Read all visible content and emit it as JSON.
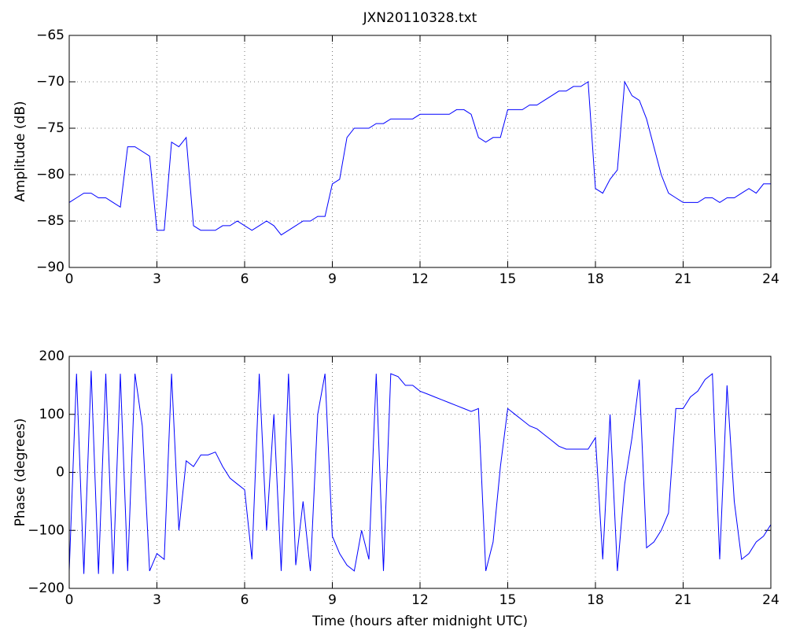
{
  "chart_data": [
    {
      "type": "line",
      "title": "JXN20110328.txt",
      "y_label": "Amplitude (dB)",
      "x": [
        0,
        0.25,
        0.5,
        0.75,
        1,
        1.25,
        1.5,
        1.75,
        2,
        2.25,
        2.5,
        2.75,
        3,
        3.25,
        3.5,
        3.75,
        4,
        4.25,
        4.5,
        4.75,
        5,
        5.25,
        5.5,
        5.75,
        6,
        6.25,
        6.5,
        6.75,
        7,
        7.25,
        7.5,
        7.75,
        8,
        8.25,
        8.5,
        8.75,
        9,
        9.25,
        9.5,
        9.75,
        10,
        10.25,
        10.5,
        10.75,
        11,
        11.25,
        11.5,
        11.75,
        12,
        12.25,
        12.5,
        12.75,
        13,
        13.25,
        13.5,
        13.75,
        14,
        14.25,
        14.5,
        14.75,
        15,
        15.25,
        15.5,
        15.75,
        16,
        16.25,
        16.5,
        16.75,
        17,
        17.25,
        17.5,
        17.75,
        18,
        18.25,
        18.5,
        18.75,
        19,
        19.25,
        19.5,
        19.75,
        20,
        20.25,
        20.5,
        20.75,
        21,
        21.25,
        21.5,
        21.75,
        22,
        22.25,
        22.5,
        22.75,
        23,
        23.25,
        23.5,
        23.75,
        24
      ],
      "series": [
        {
          "color": "#0000ff",
          "values": [
            -83,
            -82.5,
            -82,
            -82,
            -82.5,
            -82.5,
            -83,
            -83.5,
            -77,
            -77,
            -77.5,
            -78,
            -86,
            -86,
            -76.5,
            -77,
            -76,
            -85.5,
            -86,
            -86,
            -86,
            -85.5,
            -85.5,
            -85,
            -85.5,
            -86,
            -85.5,
            -85,
            -85.5,
            -86.5,
            -86,
            -85.5,
            -85,
            -85,
            -84.5,
            -84.5,
            -81,
            -80.5,
            -76,
            -75,
            -75,
            -75,
            -74.5,
            -74.5,
            -74,
            -74,
            -74,
            -74,
            -73.5,
            -73.5,
            -73.5,
            -73.5,
            -73.5,
            -73,
            -73,
            -73.5,
            -76,
            -76.5,
            -76,
            -76,
            -73,
            -73,
            -73,
            -72.5,
            -72.5,
            -72,
            -71.5,
            -71,
            -71,
            -70.5,
            -70.5,
            -70,
            -81.5,
            -82,
            -80.5,
            -79.5,
            -70,
            -71.5,
            -72,
            -74,
            -77,
            -80,
            -82,
            -82.5,
            -83,
            -83,
            -83,
            -82.5,
            -82.5,
            -83,
            -82.5,
            -82.5,
            -82,
            -81.5,
            -82,
            -81,
            -81
          ]
        }
      ],
      "xlim": [
        0,
        24
      ],
      "xticks": [
        0,
        3,
        6,
        9,
        12,
        15,
        18,
        21,
        24
      ],
      "ylim": [
        -90,
        -65
      ],
      "yticks": [
        {
          "value": -90,
          "label": "−90"
        },
        {
          "value": -85,
          "label": "−85"
        },
        {
          "value": -80,
          "label": "−80"
        },
        {
          "value": -75,
          "label": "−75"
        },
        {
          "value": -70,
          "label": "−70"
        },
        {
          "value": -65,
          "label": "−65"
        }
      ],
      "grid": true
    },
    {
      "type": "line",
      "x_label": "Time (hours after midnight UTC)",
      "y_label": "Phase (degrees)",
      "x": [
        0,
        0.25,
        0.5,
        0.75,
        1,
        1.25,
        1.5,
        1.75,
        2,
        2.25,
        2.5,
        2.75,
        3,
        3.25,
        3.5,
        3.75,
        4,
        4.25,
        4.5,
        4.75,
        5,
        5.25,
        5.5,
        5.75,
        6,
        6.25,
        6.5,
        6.75,
        7,
        7.25,
        7.5,
        7.75,
        8,
        8.25,
        8.5,
        8.75,
        9,
        9.25,
        9.5,
        9.75,
        10,
        10.25,
        10.5,
        10.75,
        11,
        11.25,
        11.5,
        11.75,
        12,
        12.25,
        12.5,
        12.75,
        13,
        13.25,
        13.5,
        13.75,
        14,
        14.25,
        14.5,
        14.75,
        15,
        15.25,
        15.5,
        15.75,
        16,
        16.25,
        16.5,
        16.75,
        17,
        17.25,
        17.5,
        17.75,
        18,
        18.25,
        18.5,
        18.75,
        19,
        19.25,
        19.5,
        19.75,
        20,
        20.25,
        20.5,
        20.75,
        21,
        21.25,
        21.5,
        21.75,
        22,
        22.25,
        22.5,
        22.75,
        23,
        23.25,
        23.5,
        23.75,
        24
      ],
      "series": [
        {
          "color": "#0000ff",
          "values": [
            -170,
            170,
            -175,
            175,
            -175,
            170,
            -175,
            170,
            -170,
            170,
            80,
            -170,
            -140,
            -150,
            170,
            -100,
            20,
            10,
            30,
            30,
            35,
            10,
            -10,
            -20,
            -30,
            -150,
            170,
            -100,
            100,
            -170,
            170,
            -160,
            -50,
            -170,
            100,
            170,
            -110,
            -140,
            -160,
            -170,
            -100,
            -150,
            170,
            -170,
            170,
            165,
            150,
            150,
            140,
            135,
            130,
            125,
            120,
            115,
            110,
            105,
            110,
            -170,
            -120,
            10,
            110,
            100,
            90,
            80,
            75,
            65,
            55,
            45,
            40,
            40,
            40,
            40,
            60,
            -150,
            100,
            -170,
            -20,
            60,
            160,
            -130,
            -120,
            -100,
            -70,
            110,
            110,
            130,
            140,
            160,
            170,
            -150,
            150,
            -50,
            -150,
            -140,
            -120,
            -110,
            -90
          ]
        }
      ],
      "xlim": [
        0,
        24
      ],
      "xticks": [
        0,
        3,
        6,
        9,
        12,
        15,
        18,
        21,
        24
      ],
      "ylim": [
        -200,
        200
      ],
      "yticks": [
        {
          "value": -200,
          "label": "−200"
        },
        {
          "value": -100,
          "label": "−100"
        },
        0,
        100,
        200
      ],
      "grid": true
    }
  ]
}
